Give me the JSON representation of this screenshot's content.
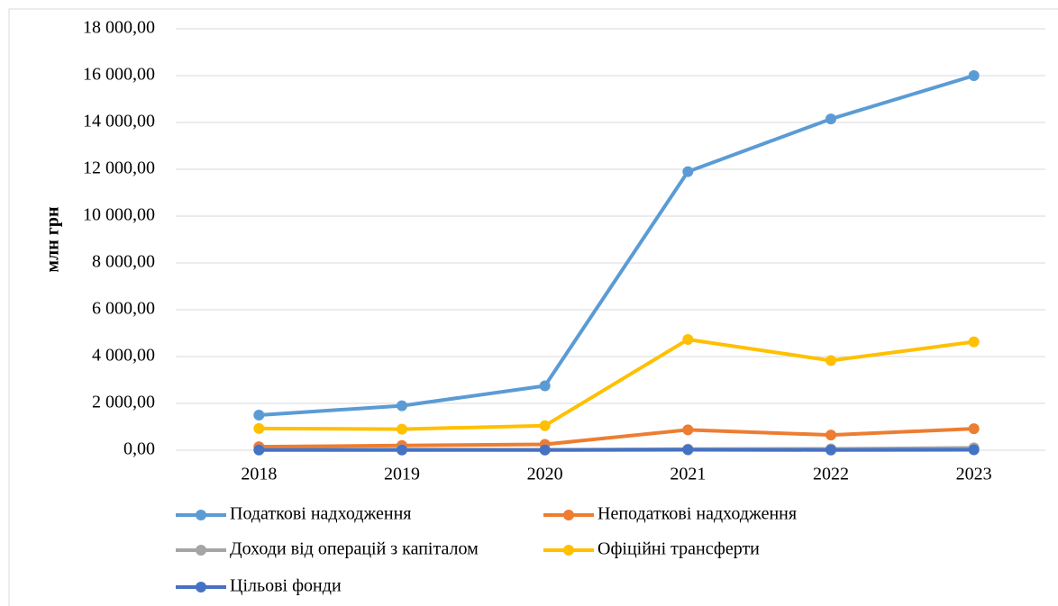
{
  "chart_data": {
    "type": "line",
    "y_label": "млн грн",
    "categories": [
      "2018",
      "2019",
      "2020",
      "2021",
      "2022",
      "2023"
    ],
    "series": [
      {
        "name": "Податкові надходження",
        "color": "#5b9bd5",
        "values": [
          1500,
          1900,
          2750,
          11900,
          14150,
          16000
        ]
      },
      {
        "name": "Неподаткові надходження",
        "color": "#ed7d31",
        "values": [
          150,
          200,
          250,
          870,
          650,
          920
        ]
      },
      {
        "name": "Доходи від операцій з капіталом",
        "color": "#a5a5a5",
        "values": [
          20,
          30,
          20,
          50,
          60,
          100
        ]
      },
      {
        "name": "Офіційні трансферти",
        "color": "#ffc000",
        "values": [
          930,
          900,
          1050,
          4730,
          3830,
          4630
        ]
      },
      {
        "name": "Цільові фонди",
        "color": "#4472c4",
        "values": [
          10,
          10,
          10,
          20,
          10,
          20
        ]
      }
    ],
    "ylim": [
      0,
      18000
    ],
    "yticks": [
      {
        "value": 0,
        "label": "0,00"
      },
      {
        "value": 2000,
        "label": "2 000,00"
      },
      {
        "value": 4000,
        "label": "4 000,00"
      },
      {
        "value": 6000,
        "label": "6 000,00"
      },
      {
        "value": 8000,
        "label": "8 000,00"
      },
      {
        "value": 10000,
        "label": "10 000,00"
      },
      {
        "value": 12000,
        "label": "12 000,00"
      },
      {
        "value": 14000,
        "label": "14 000,00"
      },
      {
        "value": 16000,
        "label": "16 000,00"
      },
      {
        "value": 18000,
        "label": "18 000,00"
      }
    ],
    "grid": true
  }
}
